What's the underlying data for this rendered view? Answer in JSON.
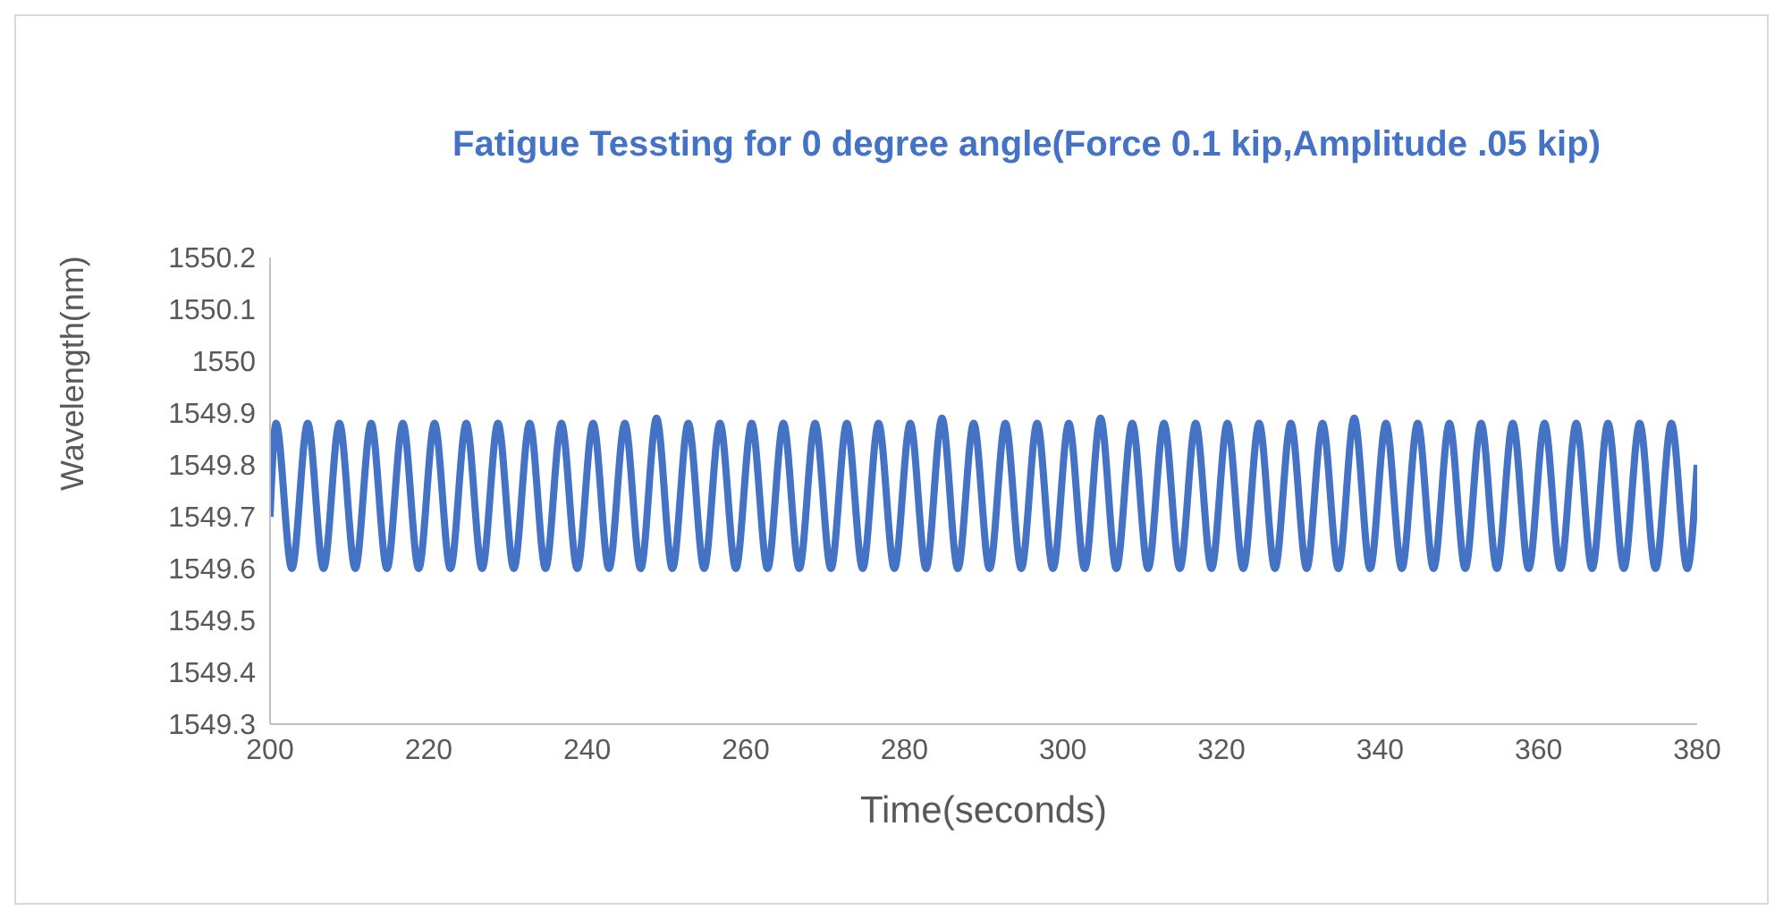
{
  "chart_data": {
    "type": "line",
    "title": "Fatigue Tessting for 0 degree angle(Force 0.1 kip,Amplitude .05 kip)",
    "xlabel": "Time(seconds)",
    "ylabel": "Wavelength(nm)",
    "xlim": [
      200,
      380
    ],
    "xticks": [
      200,
      220,
      240,
      260,
      280,
      300,
      320,
      340,
      360,
      380
    ],
    "ylim": [
      1549.3,
      1550.2
    ],
    "yticks": [
      1549.3,
      1549.4,
      1549.5,
      1549.6,
      1549.7,
      1549.8,
      1549.9,
      1550,
      1550.1,
      1550.2
    ],
    "grid": false,
    "legend": false,
    "marker": "none",
    "line_style": "solid",
    "series": [
      {
        "color": "#4472c4",
        "x": [
          200,
          200.75,
          202.75,
          204.75,
          206.75,
          208.75,
          210.75,
          212.75,
          214.75,
          216.75,
          218.75,
          220.75,
          222.75,
          224.75,
          226.75,
          228.75,
          230.75,
          232.75,
          234.75,
          236.75,
          238.75,
          240.75,
          242.75,
          244.75,
          246.75,
          248.75,
          250.75,
          252.75,
          254.75,
          256.75,
          258.75,
          260.75,
          262.75,
          264.75,
          266.75,
          268.75,
          270.75,
          272.75,
          274.75,
          276.75,
          278.75,
          280.75,
          282.75,
          284.75,
          286.75,
          288.75,
          290.75,
          292.75,
          294.75,
          296.75,
          298.75,
          300.75,
          302.75,
          304.75,
          306.75,
          308.75,
          310.75,
          312.75,
          314.75,
          316.75,
          318.75,
          320.75,
          322.75,
          324.75,
          326.75,
          328.75,
          330.75,
          332.75,
          334.75,
          336.75,
          338.75,
          340.75,
          342.75,
          344.75,
          346.75,
          348.75,
          350.75,
          352.75,
          354.75,
          356.75,
          358.75,
          360.75,
          362.75,
          364.75,
          366.75,
          368.75,
          370.75,
          372.75,
          374.75,
          376.75,
          378.75,
          380
        ],
        "values": [
          1549.7,
          1549.88,
          1549.6,
          1549.88,
          1549.6,
          1549.88,
          1549.6,
          1549.88,
          1549.6,
          1549.88,
          1549.6,
          1549.88,
          1549.6,
          1549.88,
          1549.6,
          1549.88,
          1549.6,
          1549.88,
          1549.6,
          1549.88,
          1549.6,
          1549.88,
          1549.6,
          1549.88,
          1549.6,
          1549.89,
          1549.6,
          1549.88,
          1549.6,
          1549.88,
          1549.6,
          1549.88,
          1549.6,
          1549.88,
          1549.6,
          1549.88,
          1549.6,
          1549.88,
          1549.6,
          1549.88,
          1549.6,
          1549.88,
          1549.6,
          1549.89,
          1549.6,
          1549.88,
          1549.6,
          1549.88,
          1549.6,
          1549.88,
          1549.6,
          1549.88,
          1549.6,
          1549.89,
          1549.6,
          1549.88,
          1549.6,
          1549.88,
          1549.6,
          1549.88,
          1549.6,
          1549.88,
          1549.6,
          1549.88,
          1549.6,
          1549.88,
          1549.6,
          1549.88,
          1549.6,
          1549.89,
          1549.6,
          1549.88,
          1549.6,
          1549.88,
          1549.6,
          1549.88,
          1549.6,
          1549.88,
          1549.6,
          1549.88,
          1549.6,
          1549.88,
          1549.6,
          1549.88,
          1549.6,
          1549.88,
          1549.6,
          1549.88,
          1549.6,
          1549.88,
          1549.6,
          1549.8
        ]
      }
    ]
  }
}
